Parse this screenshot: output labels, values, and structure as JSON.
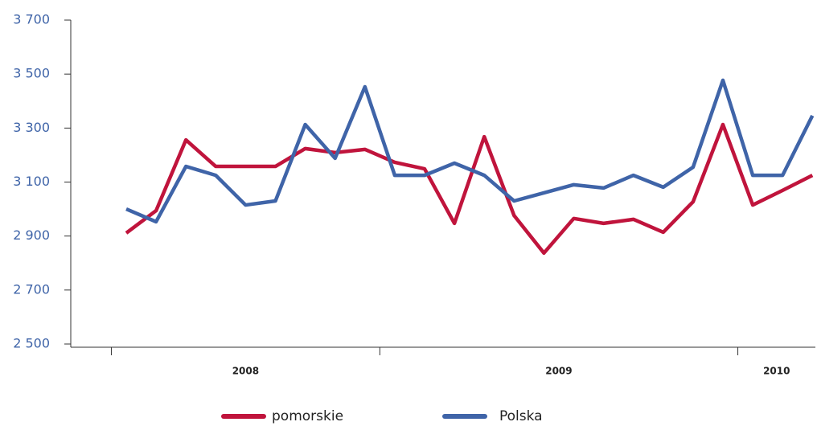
{
  "chart_data": {
    "type": "line",
    "categories": [
      null,
      null,
      null,
      null,
      null,
      null,
      null,
      null,
      null,
      null,
      null,
      null,
      null,
      null,
      null,
      null,
      null,
      null,
      null,
      null,
      null,
      null,
      null,
      null
    ],
    "x_groups": [
      {
        "label": "2008",
        "count": 9
      },
      {
        "label": "2009",
        "count": 12
      },
      {
        "label": "2010",
        "count": 3
      }
    ],
    "series": [
      {
        "name": "pomorskie",
        "color": "#c0143c",
        "values": [
          2911,
          2994,
          3256,
          3158,
          3158,
          3158,
          3224,
          3209,
          3221,
          3173,
          3149,
          2947,
          3268,
          2976,
          2837,
          2965,
          2947,
          2962,
          2914,
          3027,
          3313,
          3015,
          3069,
          3125
        ]
      },
      {
        "name": "Polska",
        "color": "#3f64a8",
        "values": [
          3000,
          2953,
          3158,
          3125,
          3015,
          3030,
          3313,
          3188,
          3453,
          3125,
          3125,
          3170,
          3125,
          3030,
          3060,
          3090,
          3078,
          3125,
          3081,
          3155,
          3477,
          3125,
          3125,
          3346
        ]
      }
    ],
    "ylim": [
      2500,
      3700
    ],
    "yticks": [
      {
        "value": 2500,
        "label": "2 500"
      },
      {
        "value": 2700,
        "label": "2 700"
      },
      {
        "value": 2900,
        "label": "2 900"
      },
      {
        "value": 3100,
        "label": "3 100"
      },
      {
        "value": 3300,
        "label": "3 300"
      },
      {
        "value": 3500,
        "label": "3 500"
      },
      {
        "value": 3700,
        "label": "3 700"
      }
    ],
    "legend": "bottom"
  }
}
